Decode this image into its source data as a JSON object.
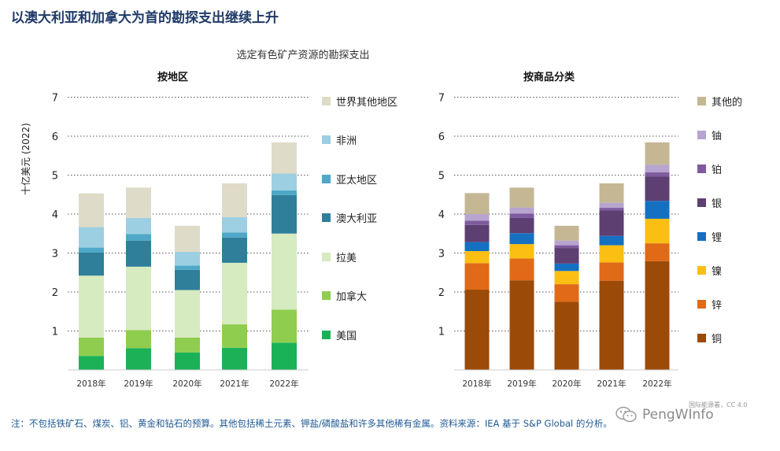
{
  "page": {
    "title": "以澳大利亚和加拿大为首的勘探支出继续上升",
    "subtitle": "选定有色矿产资源的勘探支出",
    "footnote": "注：不包括铁矿石、煤炭、铝、黄金和钻石的预算。其他包括稀土元素、钾盐/磷酸盐和许多其他稀有金属。资料来源：IEA 基于 S&P Global 的分析。"
  },
  "watermark": {
    "brand": "PengWInfo",
    "small": "国际能源署，CC 4.0",
    "icon": "wechat-icon"
  },
  "chart_data": [
    {
      "type": "bar",
      "stacked": true,
      "title": "按地区",
      "ylabel": "十亿美元 (2022)",
      "xlabel": "",
      "ylim": [
        0,
        7
      ],
      "yticks": [
        "1",
        "2",
        "3",
        "4",
        "5",
        "6",
        "7"
      ],
      "grid": true,
      "legend_position": "right",
      "categories": [
        "2018年",
        "2019年",
        "2020年",
        "2021年",
        "2022年"
      ],
      "series": [
        {
          "name": "美国",
          "color": "#1bb157",
          "values": [
            0.36,
            0.56,
            0.45,
            0.57,
            0.7
          ]
        },
        {
          "name": "加拿大",
          "color": "#8fcd4f",
          "values": [
            0.47,
            0.46,
            0.38,
            0.6,
            0.85
          ]
        },
        {
          "name": "拉美",
          "color": "#d6ebbf",
          "values": [
            1.59,
            1.63,
            1.22,
            1.58,
            1.95
          ]
        },
        {
          "name": "澳大利亚",
          "color": "#2f7f9a",
          "values": [
            0.59,
            0.67,
            0.52,
            0.65,
            0.99
          ]
        },
        {
          "name": "亚太地区",
          "color": "#4ea8c8",
          "values": [
            0.13,
            0.17,
            0.11,
            0.13,
            0.12
          ]
        },
        {
          "name": "非洲",
          "color": "#9dcfe2",
          "values": [
            0.53,
            0.41,
            0.35,
            0.39,
            0.43
          ]
        },
        {
          "name": "世界其他地区",
          "color": "#dedbc8",
          "values": [
            0.86,
            0.78,
            0.67,
            0.87,
            0.8
          ]
        }
      ],
      "totals": [
        4.53,
        4.68,
        3.7,
        4.79,
        5.84
      ]
    },
    {
      "type": "bar",
      "stacked": true,
      "title": "按商品分类",
      "xlabel": "",
      "ylim": [
        0,
        7
      ],
      "yticks": [
        "1",
        "2",
        "3",
        "4",
        "5",
        "6",
        "7"
      ],
      "grid": true,
      "legend_position": "right",
      "categories": [
        "2018年",
        "2019年",
        "2020年",
        "2021年",
        "2022年"
      ],
      "series": [
        {
          "name": "铜",
          "color": "#9b4a08",
          "values": [
            2.06,
            2.3,
            1.75,
            2.29,
            2.79
          ]
        },
        {
          "name": "锌",
          "color": "#e06a17",
          "values": [
            0.68,
            0.56,
            0.45,
            0.47,
            0.46
          ]
        },
        {
          "name": "镍",
          "color": "#fbbf14",
          "values": [
            0.31,
            0.37,
            0.34,
            0.44,
            0.63
          ]
        },
        {
          "name": "锂",
          "color": "#1570c2",
          "values": [
            0.23,
            0.28,
            0.19,
            0.24,
            0.46
          ]
        },
        {
          "name": "银",
          "color": "#5e3f72",
          "values": [
            0.44,
            0.39,
            0.4,
            0.65,
            0.62
          ]
        },
        {
          "name": "铂",
          "color": "#7e5a9e",
          "values": [
            0.11,
            0.11,
            0.07,
            0.07,
            0.11
          ]
        },
        {
          "name": "铀",
          "color": "#b7a4cf",
          "values": [
            0.17,
            0.16,
            0.12,
            0.13,
            0.2
          ]
        },
        {
          "name": "其他的",
          "color": "#c5b794",
          "values": [
            0.54,
            0.51,
            0.38,
            0.5,
            0.57
          ]
        }
      ],
      "totals": [
        4.54,
        4.68,
        3.7,
        4.79,
        5.84
      ]
    }
  ]
}
